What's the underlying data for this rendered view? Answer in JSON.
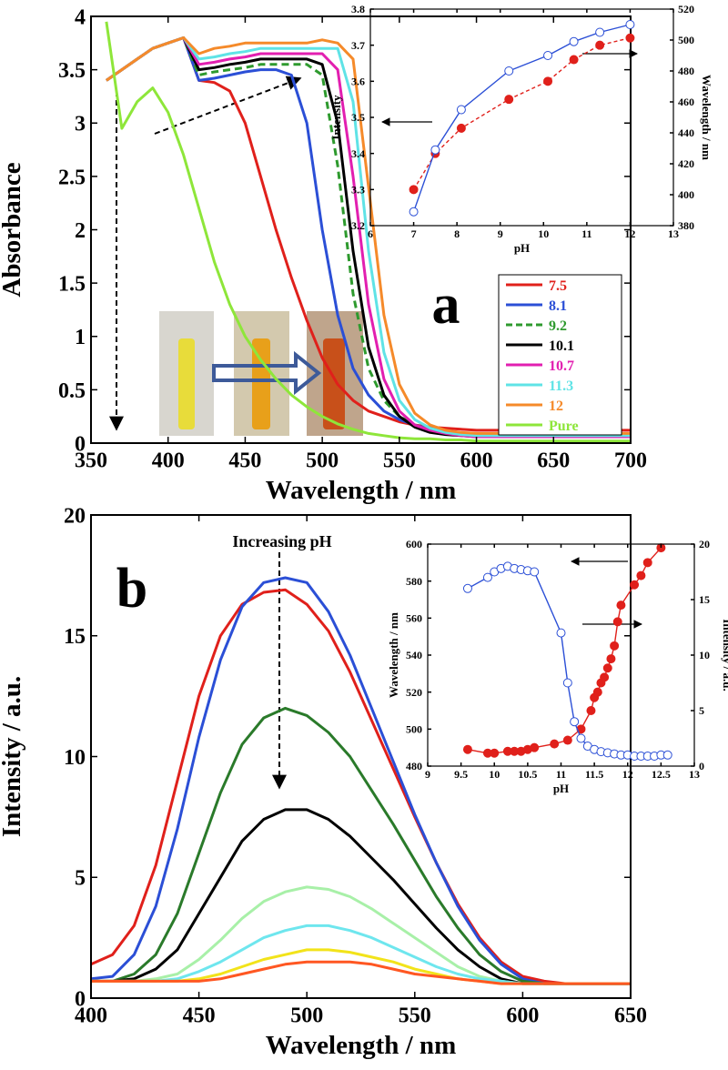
{
  "chart_data": [
    {
      "type": "line",
      "xlabel": "Wavelength / nm",
      "ylabel": "Absorbance",
      "annotations": [
        "a"
      ],
      "xlim": [
        350,
        700
      ],
      "ylim": [
        0,
        4
      ],
      "xticks": [
        350,
        400,
        450,
        500,
        550,
        600,
        650,
        700
      ],
      "yticks": [
        0,
        0.5,
        1,
        1.5,
        2,
        2.5,
        3,
        3.5,
        4
      ],
      "legend": "lower right",
      "x": [
        360,
        370,
        380,
        390,
        400,
        410,
        420,
        430,
        440,
        450,
        460,
        470,
        480,
        490,
        500,
        510,
        520,
        530,
        540,
        550,
        560,
        570,
        580,
        590,
        600,
        610,
        620,
        630,
        640,
        650,
        660,
        670,
        680,
        690,
        700
      ],
      "series": [
        {
          "name": "7.5",
          "color": "#e0201b",
          "values": [
            3.4,
            3.5,
            3.6,
            3.7,
            3.75,
            3.8,
            3.4,
            3.38,
            3.3,
            3.0,
            2.5,
            2.0,
            1.55,
            1.15,
            0.8,
            0.55,
            0.4,
            0.3,
            0.25,
            0.2,
            0.17,
            0.15,
            0.14,
            0.13,
            0.12,
            0.12,
            0.12,
            0.12,
            0.12,
            0.12,
            0.12,
            0.12,
            0.12,
            0.12,
            0.12
          ]
        },
        {
          "name": "8.1",
          "color": "#2b4fd6",
          "values": [
            3.4,
            3.5,
            3.6,
            3.7,
            3.75,
            3.8,
            3.4,
            3.42,
            3.45,
            3.48,
            3.5,
            3.5,
            3.45,
            3.0,
            2.0,
            1.2,
            0.7,
            0.45,
            0.3,
            0.22,
            0.17,
            0.13,
            0.1,
            0.09,
            0.08,
            0.08,
            0.08,
            0.08,
            0.08,
            0.08,
            0.08,
            0.08,
            0.08,
            0.08,
            0.08
          ]
        },
        {
          "name": "9.2",
          "color": "#2e9a2e",
          "dashed": true,
          "values": [
            3.4,
            3.5,
            3.6,
            3.7,
            3.75,
            3.8,
            3.45,
            3.48,
            3.5,
            3.52,
            3.55,
            3.55,
            3.55,
            3.55,
            3.45,
            2.6,
            1.4,
            0.7,
            0.4,
            0.25,
            0.17,
            0.13,
            0.1,
            0.09,
            0.08,
            0.08,
            0.08,
            0.08,
            0.08,
            0.08,
            0.08,
            0.08,
            0.08,
            0.08,
            0.08
          ]
        },
        {
          "name": "10.1",
          "color": "#000000",
          "values": [
            3.4,
            3.5,
            3.6,
            3.7,
            3.75,
            3.8,
            3.5,
            3.52,
            3.55,
            3.57,
            3.6,
            3.6,
            3.6,
            3.6,
            3.55,
            3.0,
            1.8,
            0.9,
            0.45,
            0.25,
            0.15,
            0.1,
            0.08,
            0.07,
            0.06,
            0.06,
            0.06,
            0.06,
            0.06,
            0.06,
            0.06,
            0.06,
            0.06,
            0.06,
            0.06
          ]
        },
        {
          "name": "10.7",
          "color": "#e21fb0",
          "values": [
            3.4,
            3.5,
            3.6,
            3.7,
            3.75,
            3.8,
            3.55,
            3.57,
            3.6,
            3.62,
            3.65,
            3.65,
            3.65,
            3.65,
            3.65,
            3.5,
            2.5,
            1.3,
            0.6,
            0.3,
            0.17,
            0.12,
            0.09,
            0.07,
            0.06,
            0.06,
            0.06,
            0.06,
            0.06,
            0.06,
            0.06,
            0.06,
            0.06,
            0.06,
            0.06
          ]
        },
        {
          "name": "11.3",
          "color": "#5fe3e6",
          "values": [
            3.4,
            3.5,
            3.6,
            3.7,
            3.75,
            3.8,
            3.6,
            3.62,
            3.65,
            3.67,
            3.7,
            3.7,
            3.7,
            3.7,
            3.7,
            3.7,
            3.2,
            1.8,
            0.85,
            0.4,
            0.22,
            0.14,
            0.1,
            0.08,
            0.07,
            0.07,
            0.07,
            0.07,
            0.07,
            0.07,
            0.07,
            0.07,
            0.07,
            0.07,
            0.07
          ]
        },
        {
          "name": "12",
          "color": "#f58a2a",
          "values": [
            3.4,
            3.5,
            3.6,
            3.7,
            3.75,
            3.8,
            3.65,
            3.7,
            3.72,
            3.75,
            3.75,
            3.75,
            3.75,
            3.75,
            3.78,
            3.75,
            3.6,
            2.4,
            1.2,
            0.55,
            0.28,
            0.17,
            0.12,
            0.1,
            0.09,
            0.09,
            0.09,
            0.09,
            0.09,
            0.09,
            0.09,
            0.09,
            0.09,
            0.09,
            0.09
          ]
        },
        {
          "name": "Pure",
          "color": "#8ee63a",
          "values": [
            3.95,
            2.95,
            3.2,
            3.33,
            3.1,
            2.7,
            2.2,
            1.7,
            1.3,
            1.0,
            0.78,
            0.6,
            0.45,
            0.34,
            0.25,
            0.18,
            0.13,
            0.09,
            0.07,
            0.05,
            0.04,
            0.04,
            0.03,
            0.03,
            0.02,
            0.02,
            0.02,
            0.02,
            0.02,
            0.02,
            0.02,
            0.02,
            0.02,
            0.02,
            0.02
          ]
        }
      ]
    },
    {
      "type": "line",
      "xlabel": "pH",
      "ylabel": "Intensity",
      "y2label": "Wavelength / nm",
      "xlim": [
        6,
        13
      ],
      "ylim": [
        3.2,
        3.8
      ],
      "y2lim": [
        380,
        520
      ],
      "xticks": [
        6,
        7,
        8,
        9,
        10,
        11,
        12,
        13
      ],
      "yticks": [
        3.2,
        3.3,
        3.4,
        3.5,
        3.6,
        3.7,
        3.8
      ],
      "y2ticks": [
        380,
        400,
        420,
        440,
        460,
        480,
        500,
        520
      ],
      "x": [
        7,
        7.5,
        8.1,
        9.2,
        10.1,
        10.7,
        11.3,
        12
      ],
      "series": [
        {
          "color": "#e0201b",
          "dashed": true,
          "marker": "filled",
          "values": [
            3.3,
            3.4,
            3.47,
            3.55,
            3.6,
            3.66,
            3.7,
            3.72
          ]
        },
        {
          "color": "#2b4fd6",
          "marker": "open",
          "axis": "y2",
          "values": [
            389,
            429,
            455,
            480,
            490,
            499,
            505,
            510
          ]
        }
      ]
    },
    {
      "type": "line",
      "xlabel": "Wavelength / nm",
      "ylabel": "Intensity / a.u.",
      "annotations": [
        "b",
        "Increasing pH"
      ],
      "xlim": [
        400,
        650
      ],
      "ylim": [
        0,
        20
      ],
      "xticks": [
        400,
        450,
        500,
        550,
        600,
        650
      ],
      "yticks": [
        0,
        5,
        10,
        15,
        20
      ],
      "x": [
        400,
        410,
        420,
        430,
        440,
        450,
        460,
        470,
        480,
        490,
        500,
        510,
        520,
        530,
        540,
        550,
        560,
        570,
        580,
        590,
        600,
        610,
        620,
        630,
        640,
        650
      ],
      "series": [
        {
          "color": "#e0201b",
          "values": [
            1.4,
            1.8,
            3.0,
            5.5,
            9.0,
            12.5,
            15.0,
            16.3,
            16.8,
            16.9,
            16.3,
            15.2,
            13.5,
            11.5,
            9.5,
            7.5,
            5.6,
            3.9,
            2.5,
            1.5,
            0.9,
            0.7,
            0.6,
            0.6,
            0.6,
            0.6
          ]
        },
        {
          "color": "#2b4fd6",
          "values": [
            0.8,
            0.9,
            1.8,
            3.8,
            7.0,
            10.8,
            14.0,
            16.2,
            17.2,
            17.4,
            17.2,
            16.0,
            14.2,
            12.0,
            9.8,
            7.6,
            5.6,
            3.8,
            2.4,
            1.4,
            0.8,
            0.6,
            0.6,
            0.6,
            0.6,
            0.6
          ]
        },
        {
          "color": "#2a7a2a",
          "values": [
            0.7,
            0.7,
            1.0,
            1.8,
            3.5,
            6.0,
            8.5,
            10.5,
            11.6,
            12.0,
            11.7,
            11.0,
            10.0,
            8.6,
            7.2,
            5.7,
            4.2,
            2.9,
            1.8,
            1.1,
            0.7,
            0.6,
            0.6,
            0.6,
            0.6,
            0.6
          ]
        },
        {
          "color": "#000000",
          "values": [
            0.7,
            0.7,
            0.8,
            1.2,
            2.0,
            3.5,
            5.0,
            6.5,
            7.4,
            7.8,
            7.8,
            7.4,
            6.7,
            5.8,
            4.9,
            3.9,
            2.9,
            2.0,
            1.3,
            0.8,
            0.6,
            0.6,
            0.6,
            0.6,
            0.6,
            0.6
          ]
        },
        {
          "color": "#a8f0a8",
          "values": [
            0.7,
            0.7,
            0.7,
            0.8,
            1.0,
            1.6,
            2.4,
            3.3,
            4.0,
            4.4,
            4.6,
            4.5,
            4.2,
            3.7,
            3.1,
            2.5,
            1.9,
            1.3,
            0.9,
            0.7,
            0.6,
            0.6,
            0.6,
            0.6,
            0.6,
            0.6
          ]
        },
        {
          "color": "#6ee6ee",
          "values": [
            0.7,
            0.7,
            0.7,
            0.7,
            0.8,
            1.1,
            1.5,
            2.0,
            2.5,
            2.8,
            3.0,
            3.0,
            2.8,
            2.5,
            2.1,
            1.7,
            1.3,
            1.0,
            0.8,
            0.7,
            0.6,
            0.6,
            0.6,
            0.6,
            0.6,
            0.6
          ]
        },
        {
          "color": "#f2e31a",
          "values": [
            0.7,
            0.7,
            0.7,
            0.7,
            0.7,
            0.8,
            1.0,
            1.3,
            1.6,
            1.8,
            2.0,
            2.0,
            1.9,
            1.7,
            1.5,
            1.2,
            1.0,
            0.8,
            0.7,
            0.6,
            0.6,
            0.6,
            0.6,
            0.6,
            0.6,
            0.6
          ]
        },
        {
          "color": "#ff5722",
          "values": [
            0.7,
            0.7,
            0.7,
            0.7,
            0.7,
            0.7,
            0.8,
            1.0,
            1.2,
            1.4,
            1.5,
            1.5,
            1.5,
            1.4,
            1.2,
            1.0,
            0.9,
            0.8,
            0.7,
            0.6,
            0.6,
            0.6,
            0.6,
            0.6,
            0.6,
            0.6
          ]
        }
      ]
    },
    {
      "type": "line",
      "xlabel": "pH",
      "ylabel": "Wavelength / nm",
      "y2label": "Intensity / a.u.",
      "xlim": [
        9,
        13
      ],
      "ylim": [
        480,
        600
      ],
      "y2lim": [
        0,
        20
      ],
      "xticks": [
        9,
        9.5,
        10,
        10.5,
        11,
        11.5,
        12,
        12.5,
        13
      ],
      "yticks": [
        480,
        500,
        520,
        540,
        560,
        580,
        600
      ],
      "y2ticks": [
        0,
        5,
        10,
        15,
        20
      ],
      "series": [
        {
          "color": "#e0201b",
          "marker": "filled",
          "x": [
            9.6,
            9.9,
            10.0,
            10.2,
            10.3,
            10.4,
            10.5,
            10.6,
            10.9,
            11.1,
            11.3,
            11.45,
            11.5,
            11.55,
            11.6,
            11.65,
            11.7,
            11.75,
            11.8,
            11.85,
            11.9,
            12.1,
            12.2,
            12.3,
            12.5
          ],
          "values": [
            489,
            487,
            487,
            488,
            488,
            488,
            489,
            490,
            492,
            494,
            500,
            510,
            517,
            520,
            525,
            528,
            533,
            538,
            545,
            558,
            567,
            578,
            583,
            590,
            598
          ]
        },
        {
          "color": "#2b4fd6",
          "marker": "open",
          "axis": "y2",
          "x": [
            9.6,
            9.9,
            10.0,
            10.1,
            10.2,
            10.3,
            10.4,
            10.5,
            10.6,
            11.0,
            11.1,
            11.2,
            11.3,
            11.4,
            11.5,
            11.6,
            11.7,
            11.8,
            11.9,
            12.0,
            12.1,
            12.2,
            12.3,
            12.4,
            12.5,
            12.6
          ],
          "values": [
            16.0,
            17.0,
            17.5,
            17.8,
            18.0,
            17.8,
            17.7,
            17.6,
            17.5,
            12.0,
            7.5,
            4.0,
            2.5,
            1.8,
            1.5,
            1.3,
            1.2,
            1.1,
            1.0,
            1.0,
            0.9,
            0.9,
            0.9,
            0.9,
            1.0,
            1.0
          ]
        }
      ]
    }
  ]
}
